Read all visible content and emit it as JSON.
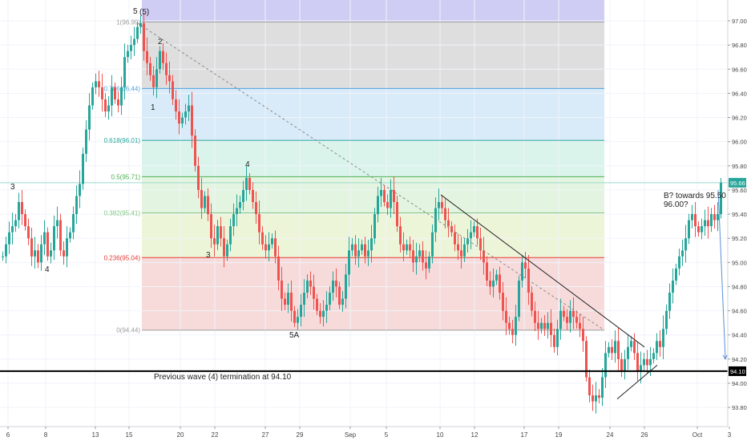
{
  "chart_data": {
    "type": "candlestick",
    "title": "",
    "xlabel": "",
    "ylabel": "",
    "ylim": [
      93.64,
      97.16
    ],
    "x_tick_labels": [
      "6",
      "8",
      "13",
      "15",
      "20",
      "22",
      "27",
      "29",
      "Sep",
      "5",
      "10",
      "12",
      "17",
      "19",
      "24",
      "26",
      "Oct",
      "3"
    ],
    "y_tick_labels": [
      "93.80",
      "94.00",
      "94.20",
      "94.40",
      "94.60",
      "94.80",
      "95.00",
      "95.20",
      "95.40",
      "95.60",
      "95.80",
      "96.00",
      "96.20",
      "96.40",
      "96.60",
      "96.80",
      "97.00"
    ],
    "last_price": "95.66",
    "support_price": "94.10",
    "fib_levels": [
      {
        "ratio": 1,
        "price": 96.99,
        "label": "1(96.99)",
        "color": "#9e9e9e"
      },
      {
        "ratio": 0.786,
        "price": 96.44,
        "label": "0.786(96.44)",
        "color": "#4fa3e0"
      },
      {
        "ratio": 0.618,
        "price": 96.01,
        "label": "0.618(96.01)",
        "color": "#26a69a"
      },
      {
        "ratio": 0.5,
        "price": 95.71,
        "label": "0.5(95.71)",
        "color": "#4caf50"
      },
      {
        "ratio": 0.382,
        "price": 95.41,
        "label": "0.382(95.41)",
        "color": "#81c784"
      },
      {
        "ratio": 0.236,
        "price": 95.04,
        "label": "0.236(95.04)",
        "color": "#e53935"
      },
      {
        "ratio": 0,
        "price": 94.44,
        "label": "0(94.44)",
        "color": "#9e9e9e"
      }
    ],
    "wave_labels": [
      "5",
      "(5)",
      "2",
      "1",
      "3",
      "4",
      "3",
      "4",
      "5A"
    ],
    "annotations": {
      "support_text": "Previous wave (4) termination at 94.10",
      "target_line1": "B? towards 95.50",
      "target_line2": "96.00?"
    },
    "series": [
      {
        "kind": "ohlc",
        "close_path": [
          [
            0,
            95.05
          ],
          [
            4,
            95.15
          ],
          [
            8,
            95.25
          ],
          [
            12,
            95.3
          ],
          [
            16,
            95.35
          ],
          [
            20,
            95.5
          ],
          [
            24,
            95.4
          ],
          [
            28,
            95.3
          ],
          [
            32,
            95.2
          ],
          [
            36,
            95.05
          ],
          [
            40,
            95.1
          ],
          [
            44,
            95.0
          ],
          [
            48,
            95.15
          ],
          [
            52,
            95.25
          ],
          [
            56,
            95.05
          ],
          [
            60,
            95.1
          ],
          [
            64,
            95.3
          ],
          [
            68,
            95.35
          ],
          [
            72,
            95.1
          ],
          [
            76,
            95.05
          ],
          [
            80,
            95.2
          ],
          [
            84,
            95.25
          ],
          [
            88,
            95.4
          ],
          [
            92,
            95.55
          ],
          [
            96,
            95.65
          ],
          [
            100,
            95.9
          ],
          [
            104,
            96.1
          ],
          [
            108,
            96.3
          ],
          [
            112,
            96.45
          ],
          [
            116,
            96.5
          ],
          [
            120,
            96.45
          ],
          [
            124,
            96.35
          ],
          [
            128,
            96.25
          ],
          [
            132,
            96.3
          ],
          [
            136,
            96.45
          ],
          [
            140,
            96.35
          ],
          [
            144,
            96.3
          ],
          [
            148,
            96.45
          ],
          [
            152,
            96.7
          ],
          [
            156,
            96.75
          ],
          [
            160,
            96.8
          ],
          [
            164,
            96.85
          ],
          [
            168,
            96.95
          ],
          [
            172,
            96.98
          ],
          [
            176,
            96.75
          ],
          [
            180,
            96.65
          ],
          [
            184,
            96.55
          ],
          [
            188,
            96.45
          ],
          [
            192,
            96.6
          ],
          [
            196,
            96.75
          ],
          [
            200,
            96.65
          ],
          [
            204,
            96.55
          ],
          [
            208,
            96.5
          ],
          [
            212,
            96.35
          ],
          [
            216,
            96.25
          ],
          [
            220,
            96.15
          ],
          [
            224,
            96.2
          ],
          [
            228,
            96.25
          ],
          [
            232,
            96.3
          ],
          [
            236,
            96.05
          ],
          [
            240,
            95.8
          ],
          [
            244,
            95.6
          ],
          [
            248,
            95.45
          ],
          [
            252,
            95.55
          ],
          [
            256,
            95.4
          ],
          [
            260,
            95.2
          ],
          [
            264,
            95.15
          ],
          [
            268,
            95.3
          ],
          [
            272,
            95.2
          ],
          [
            276,
            95.05
          ],
          [
            280,
            95.15
          ],
          [
            284,
            95.3
          ],
          [
            288,
            95.4
          ],
          [
            292,
            95.45
          ],
          [
            296,
            95.5
          ],
          [
            300,
            95.6
          ],
          [
            304,
            95.7
          ],
          [
            308,
            95.6
          ],
          [
            312,
            95.5
          ],
          [
            316,
            95.4
          ],
          [
            320,
            95.25
          ],
          [
            324,
            95.15
          ],
          [
            328,
            95.1
          ],
          [
            332,
            95.15
          ],
          [
            336,
            95.2
          ],
          [
            340,
            95.05
          ],
          [
            344,
            94.85
          ],
          [
            348,
            94.7
          ],
          [
            352,
            94.65
          ],
          [
            356,
            94.75
          ],
          [
            360,
            94.6
          ],
          [
            364,
            94.5
          ],
          [
            368,
            94.55
          ],
          [
            372,
            94.65
          ],
          [
            376,
            94.75
          ],
          [
            380,
            94.85
          ],
          [
            384,
            94.8
          ],
          [
            388,
            94.7
          ],
          [
            392,
            94.6
          ],
          [
            396,
            94.55
          ],
          [
            400,
            94.6
          ],
          [
            404,
            94.65
          ],
          [
            408,
            94.75
          ],
          [
            412,
            94.85
          ],
          [
            416,
            94.8
          ],
          [
            420,
            94.65
          ],
          [
            424,
            94.7
          ],
          [
            428,
            94.9
          ],
          [
            432,
            95.1
          ],
          [
            436,
            95.15
          ],
          [
            440,
            95.05
          ],
          [
            444,
            95.1
          ],
          [
            448,
            95.15
          ],
          [
            452,
            95.05
          ],
          [
            456,
            95.1
          ],
          [
            460,
            95.2
          ],
          [
            464,
            95.4
          ],
          [
            468,
            95.55
          ],
          [
            472,
            95.6
          ],
          [
            476,
            95.5
          ],
          [
            480,
            95.45
          ],
          [
            484,
            95.6
          ],
          [
            488,
            95.5
          ],
          [
            492,
            95.3
          ],
          [
            496,
            95.15
          ],
          [
            500,
            95.1
          ],
          [
            504,
            95.15
          ],
          [
            508,
            95.1
          ],
          [
            512,
            95.0
          ],
          [
            516,
            95.05
          ],
          [
            520,
            95.1
          ],
          [
            524,
            95.0
          ],
          [
            528,
            94.95
          ],
          [
            532,
            95.05
          ],
          [
            536,
            95.25
          ],
          [
            540,
            95.45
          ],
          [
            544,
            95.5
          ],
          [
            548,
            95.45
          ],
          [
            552,
            95.35
          ],
          [
            556,
            95.3
          ],
          [
            560,
            95.25
          ],
          [
            564,
            95.15
          ],
          [
            568,
            95.1
          ],
          [
            572,
            95.05
          ],
          [
            576,
            95.15
          ],
          [
            580,
            95.2
          ],
          [
            584,
            95.25
          ],
          [
            588,
            95.3
          ],
          [
            592,
            95.2
          ],
          [
            596,
            95.1
          ],
          [
            600,
            95.0
          ],
          [
            604,
            94.85
          ],
          [
            608,
            94.8
          ],
          [
            612,
            94.85
          ],
          [
            616,
            94.9
          ],
          [
            620,
            94.75
          ],
          [
            624,
            94.6
          ],
          [
            628,
            94.5
          ],
          [
            632,
            94.45
          ],
          [
            636,
            94.4
          ],
          [
            640,
            94.55
          ],
          [
            644,
            94.85
          ],
          [
            648,
            95.0
          ],
          [
            652,
            94.95
          ],
          [
            656,
            94.75
          ],
          [
            660,
            94.6
          ],
          [
            664,
            94.5
          ],
          [
            668,
            94.45
          ],
          [
            672,
            94.5
          ],
          [
            676,
            94.45
          ],
          [
            680,
            94.5
          ],
          [
            684,
            94.4
          ],
          [
            688,
            94.3
          ],
          [
            692,
            94.45
          ],
          [
            696,
            94.6
          ],
          [
            700,
            94.55
          ],
          [
            704,
            94.5
          ],
          [
            708,
            94.6
          ],
          [
            712,
            94.55
          ],
          [
            716,
            94.5
          ],
          [
            720,
            94.45
          ],
          [
            724,
            94.35
          ],
          [
            728,
            94.05
          ],
          [
            732,
            93.9
          ],
          [
            736,
            93.85
          ],
          [
            740,
            93.9
          ],
          [
            744,
            93.88
          ],
          [
            748,
            94.05
          ],
          [
            752,
            94.25
          ],
          [
            756,
            94.3
          ],
          [
            760,
            94.25
          ],
          [
            764,
            94.35
          ],
          [
            768,
            94.2
          ],
          [
            772,
            94.1
          ],
          [
            776,
            94.2
          ],
          [
            780,
            94.3
          ],
          [
            784,
            94.35
          ],
          [
            788,
            94.25
          ],
          [
            792,
            94.1
          ],
          [
            796,
            94.15
          ],
          [
            800,
            94.2
          ],
          [
            804,
            94.15
          ],
          [
            808,
            94.2
          ],
          [
            812,
            94.25
          ],
          [
            816,
            94.35
          ],
          [
            820,
            94.3
          ],
          [
            824,
            94.45
          ],
          [
            828,
            94.6
          ],
          [
            832,
            94.75
          ],
          [
            836,
            94.85
          ],
          [
            840,
            94.95
          ],
          [
            844,
            95.05
          ],
          [
            848,
            95.1
          ],
          [
            852,
            95.2
          ],
          [
            856,
            95.35
          ],
          [
            860,
            95.4
          ],
          [
            864,
            95.3
          ],
          [
            868,
            95.25
          ],
          [
            872,
            95.3
          ],
          [
            876,
            95.35
          ],
          [
            880,
            95.3
          ],
          [
            884,
            95.4
          ],
          [
            888,
            95.35
          ],
          [
            892,
            95.4
          ],
          [
            896,
            95.66
          ]
        ]
      }
    ]
  }
}
